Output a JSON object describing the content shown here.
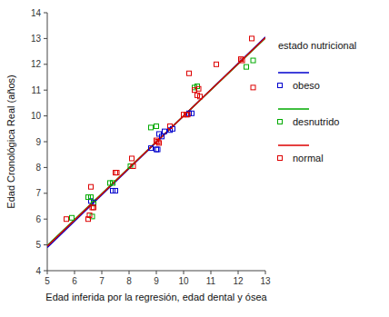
{
  "chart_data": {
    "type": "scatter",
    "xlabel": "Edad inferida por la regresión, edad dental y ósea",
    "ylabel": "Edad Cronológica Real (años)",
    "legend_title": "estado nutricional",
    "legend": "right",
    "grid": false,
    "xlim": [
      5,
      13
    ],
    "ylim": [
      4,
      14
    ],
    "xticks": [
      5,
      6,
      7,
      8,
      9,
      10,
      11,
      12,
      13
    ],
    "yticks": [
      4,
      5,
      6,
      7,
      8,
      9,
      10,
      11,
      12,
      13,
      14
    ],
    "series": [
      {
        "name": "obeso",
        "type": "scatter",
        "marker": "square",
        "color": "#0000cc",
        "x": [
          6.6,
          6.7,
          7.4,
          7.5,
          8.8,
          9.0,
          9.05,
          9.1,
          9.2,
          9.3,
          9.5,
          9.6,
          10.2,
          10.3
        ],
        "values": [
          6.7,
          6.65,
          7.1,
          7.1,
          8.75,
          8.7,
          8.7,
          9.3,
          9.2,
          9.4,
          9.45,
          9.5,
          10.1,
          10.1
        ]
      },
      {
        "name": "desnutrido",
        "type": "scatter",
        "marker": "square",
        "color": "#00aa00",
        "x": [
          5.9,
          6.5,
          6.6,
          6.65,
          6.7,
          7.3,
          7.4,
          8.05,
          8.8,
          9.0,
          10.4,
          10.5,
          12.3,
          12.55
        ],
        "values": [
          6.05,
          6.85,
          6.85,
          6.1,
          6.6,
          7.4,
          7.4,
          8.05,
          9.55,
          9.6,
          11.1,
          11.15,
          11.9,
          12.15
        ]
      },
      {
        "name": "normal",
        "type": "scatter",
        "marker": "square",
        "color": "#dd0000",
        "x": [
          5.7,
          6.5,
          6.55,
          6.6,
          6.65,
          6.7,
          7.5,
          7.55,
          8.1,
          8.15,
          9.0,
          9.05,
          9.1,
          9.5,
          10.0,
          10.1,
          10.15,
          10.2,
          10.4,
          10.5,
          10.55,
          10.6,
          11.2,
          12.1,
          12.15,
          12.5,
          12.55
        ],
        "values": [
          6.0,
          6.0,
          6.15,
          7.25,
          6.45,
          6.45,
          7.8,
          7.8,
          8.35,
          8.05,
          9.05,
          9.0,
          8.95,
          9.6,
          10.05,
          10.05,
          10.05,
          11.65,
          11.0,
          10.8,
          11.05,
          10.75,
          12.0,
          12.2,
          12.15,
          13.0,
          11.1
        ]
      },
      {
        "type": "line",
        "line_style": "solid",
        "color": "#0000cc",
        "x": [
          5,
          13
        ],
        "values": [
          4.9,
          13.06
        ]
      },
      {
        "type": "line",
        "line_style": "solid",
        "color": "#00aa00",
        "x": [
          5,
          13
        ],
        "values": [
          4.975,
          13.015
        ]
      },
      {
        "type": "line",
        "line_style": "solid",
        "color": "#dd0000",
        "x": [
          5,
          13
        ],
        "values": [
          4.95,
          13.03
        ]
      }
    ]
  }
}
